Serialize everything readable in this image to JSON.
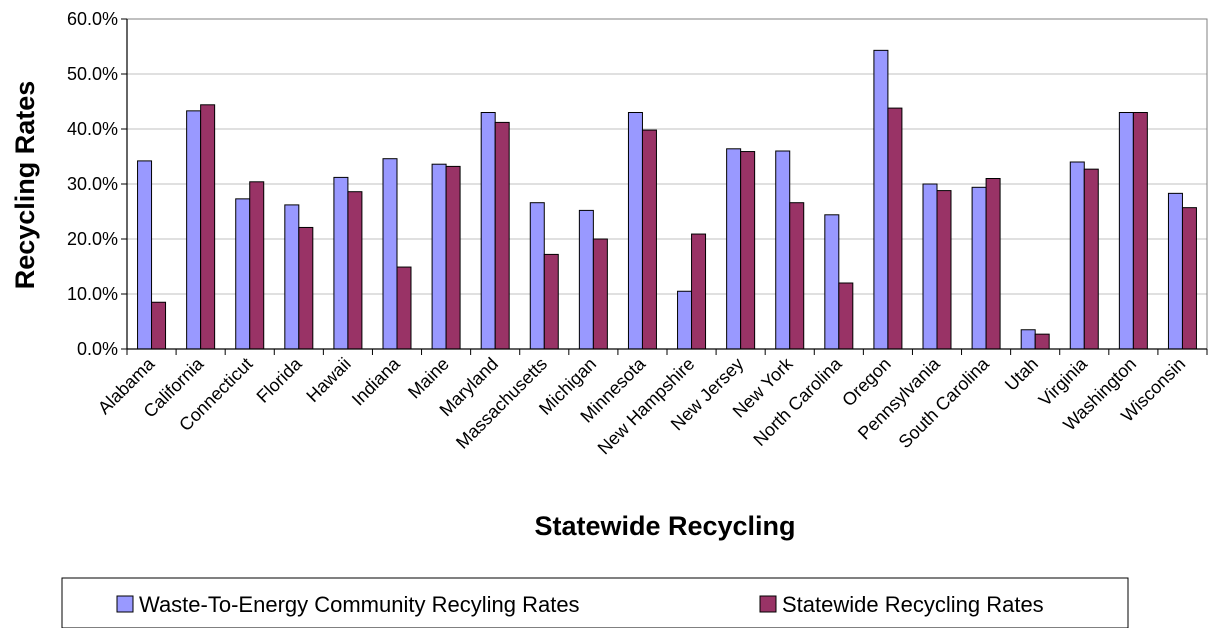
{
  "chart_data": {
    "type": "bar",
    "title": "",
    "xlabel": "Statewide Recycling",
    "ylabel": "Recycling Rates",
    "ylim": [
      0,
      0.6
    ],
    "yticks": [
      "0.0%",
      "10.0%",
      "20.0%",
      "30.0%",
      "40.0%",
      "50.0%",
      "60.0%"
    ],
    "grid": true,
    "legend_position": "bottom",
    "categories": [
      "Alabama",
      "California",
      "Connecticut",
      "Florida",
      "Hawaii",
      "Indiana",
      "Maine",
      "Maryland",
      "Massachusetts",
      "Michigan",
      "Minnesota",
      "New Hampshire",
      "New Jersey",
      "New York",
      "North Carolina",
      "Oregon",
      "Pennsylvania",
      "South Carolina",
      "Utah",
      "Virginia",
      "Washington",
      "Wisconsin"
    ],
    "series": [
      {
        "name": "Waste-To-Energy Community Recyling Rates",
        "color": "#9999FF",
        "values": [
          0.342,
          0.433,
          0.273,
          0.262,
          0.312,
          0.346,
          0.336,
          0.43,
          0.266,
          0.252,
          0.43,
          0.105,
          0.364,
          0.36,
          0.244,
          0.543,
          0.3,
          0.294,
          0.035,
          0.34,
          0.43,
          0.283
        ]
      },
      {
        "name": "Statewide Recycling Rates",
        "color": "#993366",
        "values": [
          0.085,
          0.444,
          0.304,
          0.221,
          0.286,
          0.149,
          0.332,
          0.412,
          0.172,
          0.2,
          0.398,
          0.209,
          0.359,
          0.266,
          0.12,
          0.438,
          0.288,
          0.31,
          0.027,
          0.327,
          0.43,
          0.257
        ]
      }
    ]
  }
}
